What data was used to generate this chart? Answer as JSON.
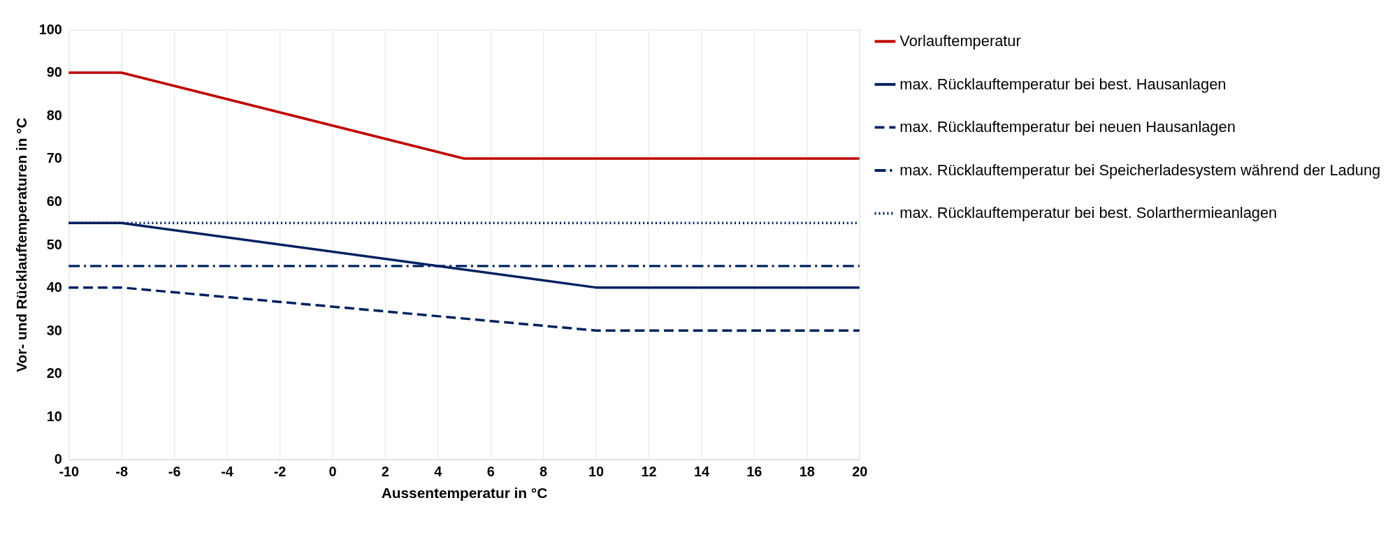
{
  "chart_data": {
    "type": "line",
    "xlabel": "Aussentemperatur in °C",
    "ylabel": "Vor- und Rücklauftemperaturen in °C",
    "xlim": [
      -10,
      20
    ],
    "xticks": [
      -10,
      -8,
      -6,
      -4,
      -2,
      0,
      2,
      4,
      6,
      8,
      10,
      12,
      14,
      16,
      18,
      20
    ],
    "ylim": [
      0,
      100
    ],
    "yticks": [
      0,
      10,
      20,
      30,
      40,
      50,
      60,
      70,
      80,
      90,
      100
    ],
    "grid": "x",
    "legend": "right",
    "marker": "none",
    "series": [
      {
        "name": "Vorlauftemperatur",
        "color": "#c00000",
        "line_style": "solid",
        "x": [
          -10,
          -8,
          5,
          20
        ],
        "values": [
          90,
          90,
          70,
          70
        ]
      },
      {
        "name": "max. Rücklauftemperatur bei best. Hausanlagen",
        "color": "#002060",
        "line_style": "solid",
        "x": [
          -10,
          -8,
          10,
          20
        ],
        "values": [
          55,
          55,
          40,
          40
        ]
      },
      {
        "name": "max. Rücklauftemperatur bei neuen Hausanlagen",
        "color": "#002060",
        "line_style": "dashed",
        "x": [
          -10,
          -8,
          10,
          20
        ],
        "values": [
          40,
          40,
          30,
          30
        ]
      },
      {
        "name": "max. Rücklauftemperatur bei Speicherladesystem während der Ladung",
        "color": "#002060",
        "line_style": "dashdot",
        "x": [
          -10,
          20
        ],
        "values": [
          45,
          45
        ]
      },
      {
        "name": "max. Rücklauftemperatur bei best. Solarthermieanlagen",
        "color": "#002060",
        "line_style": "dotted",
        "x": [
          -10,
          20
        ],
        "values": [
          55,
          55
        ]
      }
    ]
  }
}
